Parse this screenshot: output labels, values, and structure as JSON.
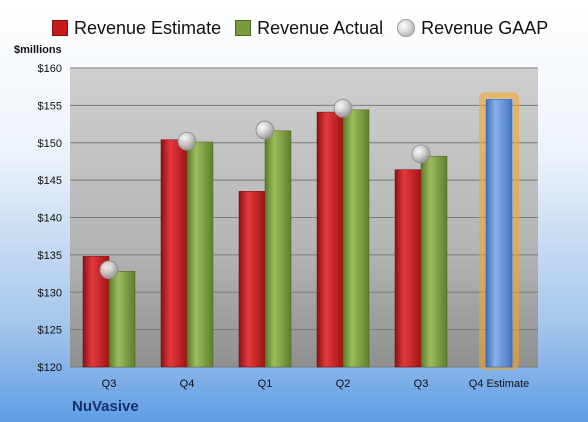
{
  "chart_data": {
    "type": "bar",
    "unit": "$millions",
    "company": "NuVasive",
    "categories": [
      "Q3",
      "Q4",
      "Q1",
      "Q2",
      "Q3",
      "Q4 Estimate"
    ],
    "series": [
      {
        "name": "Revenue Estimate",
        "type": "bar",
        "color": "#c8191c",
        "values": [
          134.8,
          150.4,
          143.5,
          154.1,
          146.4,
          null
        ]
      },
      {
        "name": "Revenue Actual",
        "type": "bar",
        "color": "#7a9b3e",
        "values": [
          132.8,
          150.1,
          151.6,
          154.4,
          148.2,
          null
        ]
      },
      {
        "name": "Revenue GAAP",
        "type": "marker",
        "color": "#bfbfbf",
        "values": [
          133.0,
          150.2,
          151.7,
          154.6,
          148.5,
          null
        ]
      },
      {
        "name": "Q4 Estimate",
        "type": "bar",
        "color": "#5b8fd6",
        "highlight": "#f5a623",
        "values": [
          null,
          null,
          null,
          null,
          null,
          155.8
        ]
      }
    ],
    "y_ticks": [
      "$120",
      "$125",
      "$130",
      "$135",
      "$140",
      "$145",
      "$150",
      "$155",
      "$160"
    ],
    "ylim": [
      120,
      160
    ],
    "grid": true,
    "legend": "top"
  }
}
